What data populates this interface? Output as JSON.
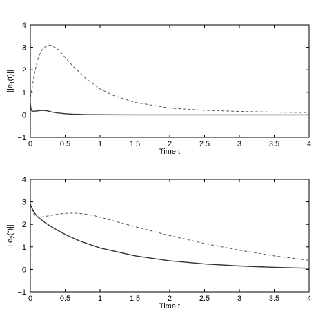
{
  "chart_data": [
    {
      "type": "line",
      "xlabel": "Time t",
      "ylabel_main": "||e",
      "ylabel_sub": "1",
      "ylabel_tail": "(t)||",
      "xlim": [
        0,
        4
      ],
      "ylim": [
        -1,
        4
      ],
      "xticks": [
        0,
        0.5,
        1,
        1.5,
        2,
        2.5,
        3,
        3.5,
        4
      ],
      "xtick_labels": [
        "0",
        "0.5",
        "1",
        "1.5",
        "2",
        "2.5",
        "3",
        "3.5",
        "4"
      ],
      "yticks": [
        -1,
        0,
        1,
        2,
        3,
        4
      ],
      "ytick_labels": [
        "−1",
        "0",
        "1",
        "2",
        "3",
        "4"
      ],
      "grid": false,
      "series": [
        {
          "style": "dashed",
          "color": "#555555",
          "x": [
            0,
            0.02,
            0.05,
            0.1,
            0.15,
            0.2,
            0.25,
            0.28,
            0.32,
            0.4,
            0.5,
            0.6,
            0.8,
            1.0,
            1.2,
            1.5,
            2.0,
            2.5,
            3.0,
            3.5,
            4.0
          ],
          "y": [
            0.75,
            1.1,
            1.7,
            2.4,
            2.8,
            3.0,
            3.08,
            3.1,
            3.07,
            2.9,
            2.55,
            2.2,
            1.6,
            1.15,
            0.85,
            0.55,
            0.3,
            0.2,
            0.15,
            0.12,
            0.1
          ]
        },
        {
          "style": "solid",
          "color": "#333333",
          "x": [
            0,
            0.01,
            0.02,
            0.04,
            0.06,
            0.1,
            0.15,
            0.2,
            0.25,
            0.3,
            0.4,
            0.5,
            0.6,
            0.7,
            0.8,
            1.0,
            1.5,
            2.0,
            2.5,
            3.0,
            3.5,
            4.0
          ],
          "y": [
            0.5,
            0.25,
            0.17,
            0.16,
            0.16,
            0.17,
            0.19,
            0.19,
            0.17,
            0.13,
            0.08,
            0.05,
            0.03,
            0.02,
            0.01,
            0.005,
            0.0,
            0.0,
            0.0,
            0.0,
            0.0,
            0.0
          ]
        }
      ]
    },
    {
      "type": "line",
      "xlabel": "Time t",
      "ylabel_main": "||e",
      "ylabel_sub": "2",
      "ylabel_tail": "(t)||",
      "xlim": [
        0,
        4
      ],
      "ylim": [
        -1,
        4
      ],
      "xticks": [
        0,
        0.5,
        1,
        1.5,
        2,
        2.5,
        3,
        3.5,
        4
      ],
      "xtick_labels": [
        "0",
        "0.5",
        "1",
        "1.5",
        "2",
        "2.5",
        "3",
        "3.5",
        "4"
      ],
      "yticks": [
        -1,
        0,
        1,
        2,
        3,
        4
      ],
      "ytick_labels": [
        "−1",
        "0",
        "1",
        "2",
        "3",
        "4"
      ],
      "grid": false,
      "series": [
        {
          "style": "dashed",
          "color": "#555555",
          "x": [
            0,
            0.03,
            0.06,
            0.1,
            0.15,
            0.2,
            0.3,
            0.4,
            0.5,
            0.6,
            0.7,
            0.8,
            0.9,
            1.0,
            1.2,
            1.5,
            2.0,
            2.5,
            3.0,
            3.5,
            4.0
          ],
          "y": [
            2.9,
            2.6,
            2.4,
            2.32,
            2.32,
            2.35,
            2.4,
            2.46,
            2.49,
            2.5,
            2.49,
            2.45,
            2.4,
            2.32,
            2.15,
            1.9,
            1.5,
            1.15,
            0.85,
            0.6,
            0.4
          ]
        },
        {
          "style": "solid",
          "color": "#333333",
          "x": [
            0,
            0.02,
            0.05,
            0.1,
            0.2,
            0.3,
            0.4,
            0.5,
            0.7,
            1.0,
            1.5,
            2.0,
            2.5,
            3.0,
            3.5,
            4.0
          ],
          "y": [
            2.9,
            2.75,
            2.55,
            2.35,
            2.1,
            1.9,
            1.72,
            1.55,
            1.27,
            0.95,
            0.6,
            0.38,
            0.24,
            0.15,
            0.09,
            0.05
          ]
        }
      ]
    }
  ]
}
